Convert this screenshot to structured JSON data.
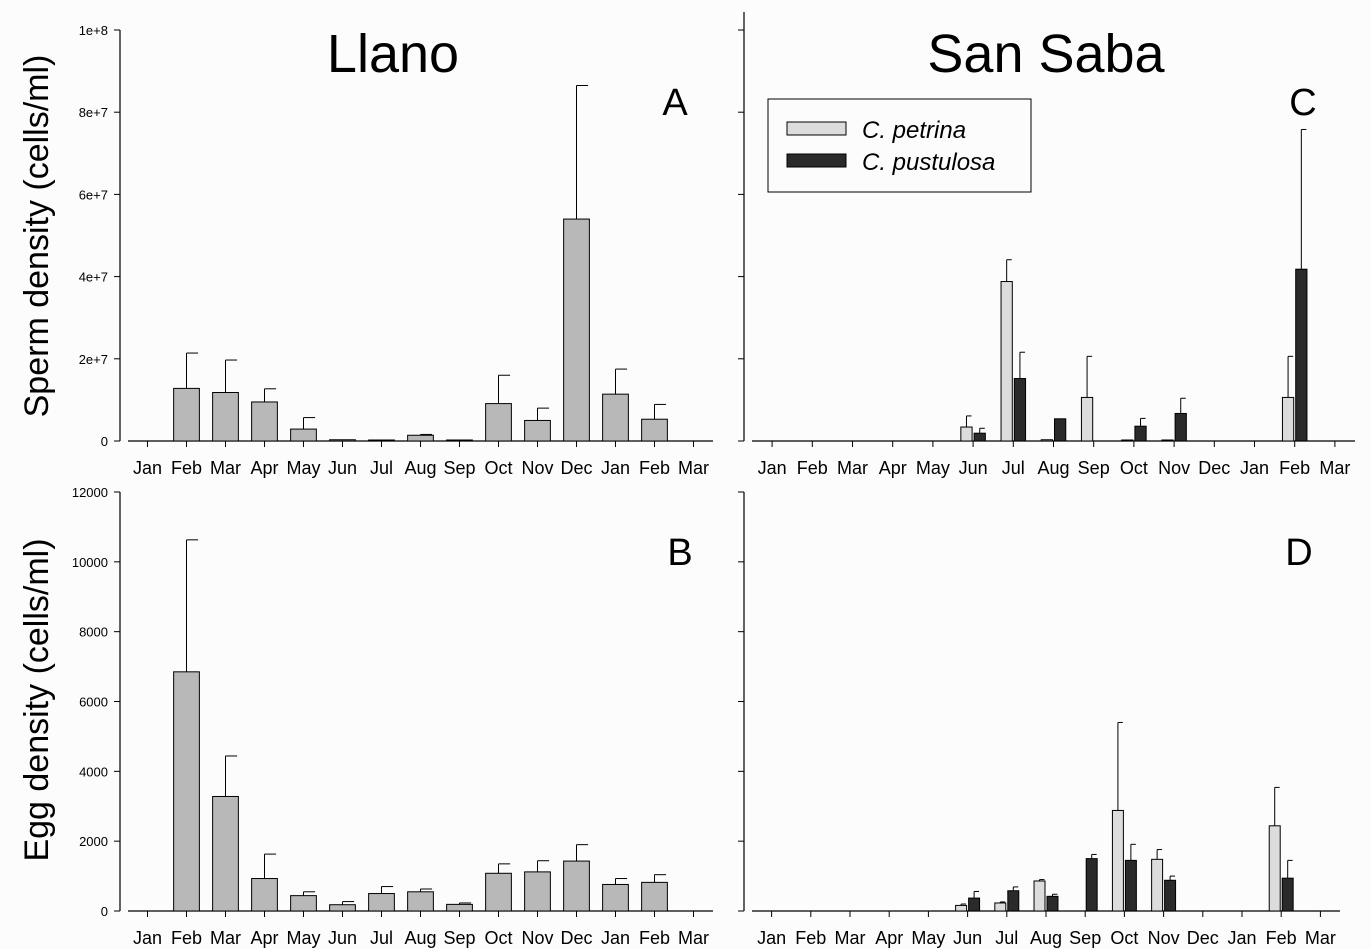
{
  "chart_data": [
    {
      "panel": "A",
      "site_title": "Llano",
      "type": "bar",
      "ylabel": "Sperm density (cells/ml)",
      "ylim": [
        0,
        100000000
      ],
      "yticks": [
        "0",
        "2e+7",
        "4e+7",
        "6e+7",
        "8e+7",
        "1e+8"
      ],
      "categories": [
        "Jan",
        "Feb",
        "Mar",
        "Apr",
        "May",
        "Jun",
        "Jul",
        "Aug",
        "Sep",
        "Oct",
        "Nov",
        "Dec",
        "Jan",
        "Feb",
        "Mar"
      ],
      "series": [
        {
          "color": "#b8b8b8",
          "values": [
            null,
            12800000,
            11800000,
            9500000,
            2900000,
            300000,
            100000,
            1400000,
            150000,
            9100000,
            5000000,
            54000000,
            11400000,
            5300000,
            null
          ],
          "errors": [
            null,
            8600000,
            7900000,
            3200000,
            2800000,
            0,
            0,
            200000,
            0,
            6900000,
            3000000,
            32500000,
            6100000,
            3600000,
            null
          ]
        }
      ]
    },
    {
      "panel": "B",
      "type": "bar",
      "ylabel": "Egg density (cells/ml)",
      "ylim": [
        0,
        12000
      ],
      "yticks": [
        "0",
        "2000",
        "4000",
        "6000",
        "8000",
        "10000",
        "12000"
      ],
      "categories": [
        "Jan",
        "Feb",
        "Mar",
        "Apr",
        "May",
        "Jun",
        "Jul",
        "Aug",
        "Sep",
        "Oct",
        "Nov",
        "Dec",
        "Jan",
        "Feb",
        "Mar"
      ],
      "series": [
        {
          "color": "#b8b8b8",
          "values": [
            null,
            6850,
            3280,
            930,
            440,
            180,
            500,
            550,
            190,
            1080,
            1120,
            1430,
            760,
            820,
            null
          ],
          "errors": [
            null,
            3780,
            1160,
            700,
            110,
            90,
            200,
            80,
            40,
            270,
            320,
            470,
            170,
            220,
            null
          ]
        }
      ]
    },
    {
      "panel": "C",
      "site_title": "San Saba",
      "type": "bar",
      "ylim": [
        0,
        100000000
      ],
      "categories": [
        "Jan",
        "Feb",
        "Mar",
        "Apr",
        "May",
        "Jun",
        "Jul",
        "Aug",
        "Sep",
        "Oct",
        "Nov",
        "Dec",
        "Jan",
        "Feb",
        "Mar"
      ],
      "series": [
        {
          "name": "C. petrina",
          "color": "#dcdcdc",
          "values": [
            null,
            null,
            null,
            null,
            null,
            3400000,
            38800000,
            300000,
            10600000,
            200000,
            200000,
            null,
            null,
            10600000,
            null
          ],
          "errors": [
            null,
            null,
            null,
            null,
            null,
            2700000,
            5300000,
            0,
            10000000,
            0,
            0,
            null,
            null,
            10000000,
            null
          ]
        },
        {
          "name": "C. pustulosa",
          "color": "#2a2a2a",
          "values": [
            null,
            null,
            null,
            null,
            null,
            1900000,
            15200000,
            5400000,
            null,
            3600000,
            6700000,
            null,
            null,
            41800000,
            null
          ],
          "errors": [
            null,
            null,
            null,
            null,
            null,
            1200000,
            6400000,
            0,
            null,
            1900000,
            3700000,
            null,
            null,
            34000000,
            null
          ]
        }
      ]
    },
    {
      "panel": "D",
      "type": "bar",
      "ylim": [
        0,
        12000
      ],
      "categories": [
        "Jan",
        "Feb",
        "Mar",
        "Apr",
        "May",
        "Jun",
        "Jul",
        "Aug",
        "Sep",
        "Oct",
        "Nov",
        "Dec",
        "Jan",
        "Feb",
        "Mar"
      ],
      "series": [
        {
          "name": "C. petrina",
          "color": "#dcdcdc",
          "values": [
            null,
            null,
            null,
            null,
            null,
            160,
            230,
            860,
            null,
            2880,
            1480,
            null,
            null,
            2440,
            null
          ],
          "errors": [
            null,
            null,
            null,
            null,
            null,
            40,
            30,
            40,
            null,
            2520,
            280,
            null,
            null,
            1100,
            null
          ]
        },
        {
          "name": "C. pustulosa",
          "color": "#2a2a2a",
          "values": [
            null,
            null,
            null,
            null,
            null,
            370,
            580,
            420,
            1500,
            1450,
            880,
            null,
            null,
            940,
            null
          ],
          "errors": [
            null,
            null,
            null,
            null,
            null,
            190,
            110,
            60,
            120,
            460,
            120,
            null,
            null,
            510,
            null
          ]
        }
      ]
    }
  ],
  "legend": {
    "items": [
      "C. petrina",
      "C. pustulosa"
    ],
    "placement": "top-left of panel C"
  }
}
